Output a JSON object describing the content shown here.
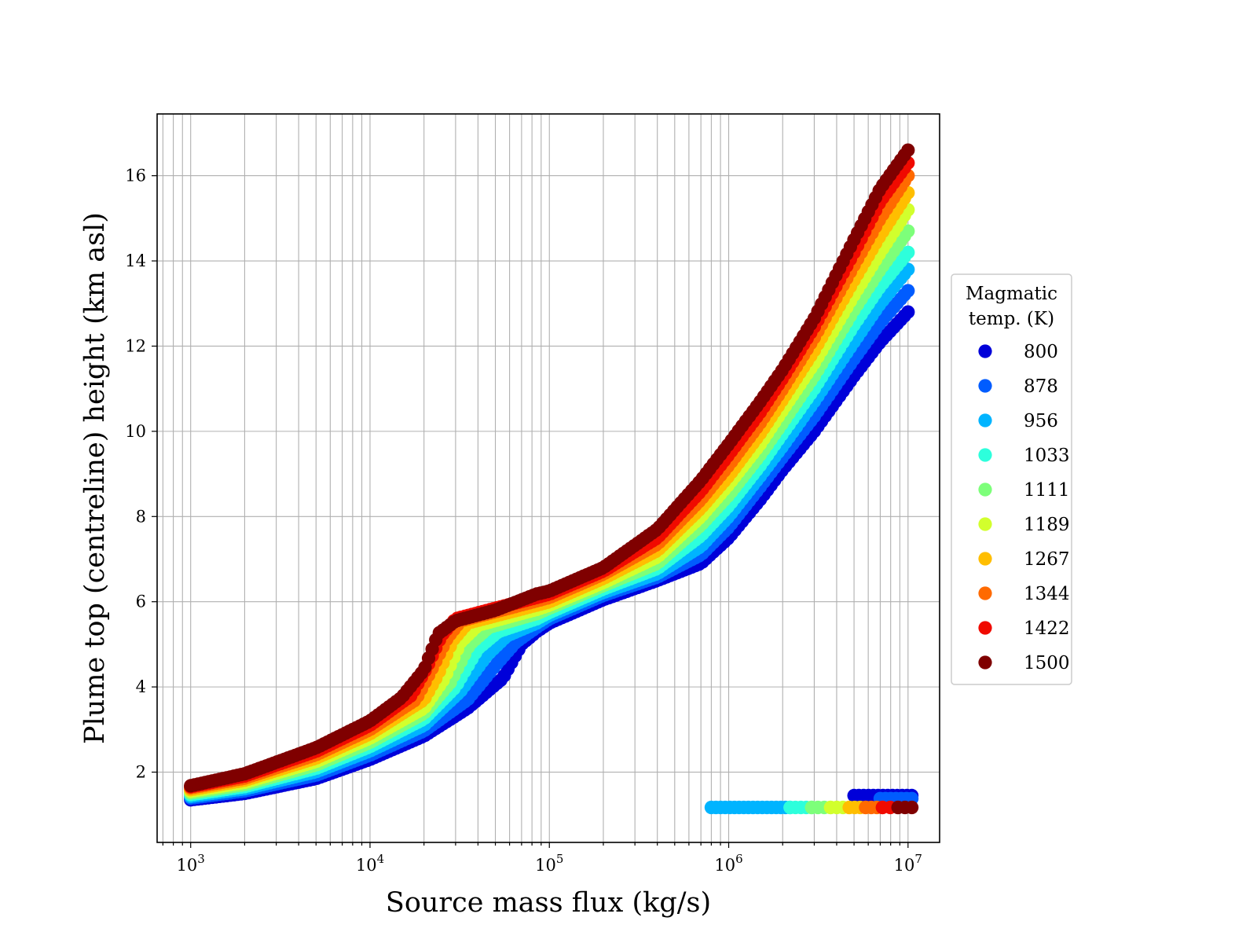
{
  "chart_data": {
    "type": "scatter",
    "title": "",
    "xlabel": "Source mass flux (kg/s)",
    "ylabel": "Plume top (centreline) height (km asl)",
    "xscale": "log",
    "xlim": [
      650,
      15000000
    ],
    "ylim": [
      0.35,
      17.45
    ],
    "x_ticks": [
      {
        "value": 1000,
        "base": "10",
        "exp": "3"
      },
      {
        "value": 10000,
        "base": "10",
        "exp": "4"
      },
      {
        "value": 100000,
        "base": "10",
        "exp": "5"
      },
      {
        "value": 1000000,
        "base": "10",
        "exp": "6"
      },
      {
        "value": 10000000,
        "base": "10",
        "exp": "7"
      }
    ],
    "y_ticks": [
      2,
      4,
      6,
      8,
      10,
      12,
      14,
      16
    ],
    "grid": true,
    "legend": {
      "title_lines": [
        "Magmatic",
        "temp. (K)"
      ],
      "placement": "right"
    },
    "series": [
      {
        "name": "800",
        "color": "#0000d9",
        "main_curve": [
          [
            1000,
            1.35
          ],
          [
            2000,
            1.5
          ],
          [
            5000,
            1.85
          ],
          [
            10000,
            2.3
          ],
          [
            20000,
            2.85
          ],
          [
            35000,
            3.5
          ],
          [
            55000,
            4.2
          ],
          [
            70000,
            5.0
          ],
          [
            85000,
            5.3
          ],
          [
            100000,
            5.5
          ],
          [
            200000,
            6.05
          ],
          [
            400000,
            6.5
          ],
          [
            700000,
            6.9
          ],
          [
            1000000,
            7.5
          ],
          [
            1500000,
            8.4
          ],
          [
            2000000,
            9.1
          ],
          [
            3000000,
            10.0
          ],
          [
            5000000,
            11.3
          ],
          [
            7000000,
            12.1
          ],
          [
            10000000,
            12.8
          ]
        ],
        "branch": {
          "x_start": 5000000,
          "x_end": 10500000,
          "y": 1.45
        }
      },
      {
        "name": "878",
        "color": "#005cff",
        "main_curve": [
          [
            1000,
            1.39
          ],
          [
            2000,
            1.56
          ],
          [
            5000,
            1.93
          ],
          [
            10000,
            2.4
          ],
          [
            20000,
            2.97
          ],
          [
            35000,
            3.7
          ],
          [
            50000,
            4.5
          ],
          [
            65000,
            5.05
          ],
          [
            85000,
            5.4
          ],
          [
            100000,
            5.6
          ],
          [
            200000,
            6.15
          ],
          [
            400000,
            6.58
          ],
          [
            700000,
            7.1
          ],
          [
            1000000,
            7.75
          ],
          [
            1500000,
            8.7
          ],
          [
            2000000,
            9.4
          ],
          [
            3000000,
            10.35
          ],
          [
            5000000,
            11.7
          ],
          [
            7000000,
            12.55
          ],
          [
            10000000,
            13.3
          ]
        ],
        "branch": {
          "x_start": 7000000,
          "x_end": 10500000,
          "y": 1.38
        }
      },
      {
        "name": "956",
        "color": "#00b4ff",
        "main_curve": [
          [
            1000,
            1.43
          ],
          [
            2000,
            1.61
          ],
          [
            5000,
            2.01
          ],
          [
            10000,
            2.5
          ],
          [
            20000,
            3.1
          ],
          [
            32000,
            3.9
          ],
          [
            45000,
            4.75
          ],
          [
            58000,
            5.2
          ],
          [
            85000,
            5.5
          ],
          [
            100000,
            5.68
          ],
          [
            200000,
            6.22
          ],
          [
            400000,
            6.66
          ],
          [
            700000,
            7.3
          ],
          [
            1000000,
            8.0
          ],
          [
            1500000,
            8.95
          ],
          [
            2000000,
            9.65
          ],
          [
            3000000,
            10.7
          ],
          [
            5000000,
            12.1
          ],
          [
            7000000,
            13.0
          ],
          [
            10000000,
            13.8
          ]
        ],
        "branch": {
          "x_start": 800000,
          "x_end": 2200000,
          "y": 1.17
        }
      },
      {
        "name": "1033",
        "color": "#2dffdc",
        "main_curve": [
          [
            1000,
            1.47
          ],
          [
            2000,
            1.66
          ],
          [
            5000,
            2.09
          ],
          [
            10000,
            2.6
          ],
          [
            20000,
            3.25
          ],
          [
            30000,
            4.0
          ],
          [
            40000,
            4.9
          ],
          [
            52000,
            5.3
          ],
          [
            85000,
            5.6
          ],
          [
            100000,
            5.75
          ],
          [
            200000,
            6.3
          ],
          [
            400000,
            6.78
          ],
          [
            700000,
            7.55
          ],
          [
            1000000,
            8.25
          ],
          [
            1500000,
            9.2
          ],
          [
            2000000,
            9.95
          ],
          [
            3000000,
            11.0
          ],
          [
            5000000,
            12.5
          ],
          [
            7000000,
            13.4
          ],
          [
            10000000,
            14.2
          ]
        ],
        "branch": {
          "x_start": 2200000,
          "x_end": 2900000,
          "y": 1.17
        }
      },
      {
        "name": "1111",
        "color": "#7dff7a",
        "main_curve": [
          [
            1000,
            1.51
          ],
          [
            2000,
            1.71
          ],
          [
            5000,
            2.17
          ],
          [
            10000,
            2.7
          ],
          [
            20000,
            3.38
          ],
          [
            28000,
            4.1
          ],
          [
            36000,
            5.0
          ],
          [
            46000,
            5.4
          ],
          [
            85000,
            5.72
          ],
          [
            100000,
            5.85
          ],
          [
            200000,
            6.38
          ],
          [
            400000,
            6.9
          ],
          [
            700000,
            7.8
          ],
          [
            1000000,
            8.5
          ],
          [
            1500000,
            9.45
          ],
          [
            2000000,
            10.2
          ],
          [
            3000000,
            11.3
          ],
          [
            5000000,
            12.85
          ],
          [
            7000000,
            13.8
          ],
          [
            10000000,
            14.7
          ]
        ],
        "branch": {
          "x_start": 2900000,
          "x_end": 3700000,
          "y": 1.17
        }
      },
      {
        "name": "1189",
        "color": "#d2ff2d",
        "main_curve": [
          [
            1000,
            1.55
          ],
          [
            2000,
            1.76
          ],
          [
            5000,
            2.25
          ],
          [
            10000,
            2.8
          ],
          [
            20000,
            3.5
          ],
          [
            26000,
            4.2
          ],
          [
            32000,
            5.05
          ],
          [
            40000,
            5.45
          ],
          [
            85000,
            5.82
          ],
          [
            100000,
            5.92
          ],
          [
            200000,
            6.45
          ],
          [
            400000,
            7.05
          ],
          [
            700000,
            8.0
          ],
          [
            1000000,
            8.75
          ],
          [
            1500000,
            9.7
          ],
          [
            2000000,
            10.5
          ],
          [
            3000000,
            11.6
          ],
          [
            5000000,
            13.2
          ],
          [
            7000000,
            14.2
          ],
          [
            10000000,
            15.2
          ]
        ],
        "branch": {
          "x_start": 3700000,
          "x_end": 4700000,
          "y": 1.17
        }
      },
      {
        "name": "1267",
        "color": "#ffbe00",
        "main_curve": [
          [
            1000,
            1.59
          ],
          [
            2000,
            1.81
          ],
          [
            5000,
            2.33
          ],
          [
            10000,
            2.9
          ],
          [
            20000,
            3.7
          ],
          [
            24000,
            4.3
          ],
          [
            29000,
            5.1
          ],
          [
            35000,
            5.5
          ],
          [
            85000,
            5.92
          ],
          [
            100000,
            6.0
          ],
          [
            200000,
            6.55
          ],
          [
            400000,
            7.2
          ],
          [
            700000,
            8.2
          ],
          [
            1000000,
            8.95
          ],
          [
            1500000,
            9.95
          ],
          [
            2000000,
            10.75
          ],
          [
            3000000,
            11.9
          ],
          [
            5000000,
            13.55
          ],
          [
            7000000,
            14.6
          ],
          [
            10000000,
            15.6
          ]
        ],
        "branch": {
          "x_start": 4700000,
          "x_end": 5800000,
          "y": 1.17
        }
      },
      {
        "name": "1344",
        "color": "#ff6a00",
        "main_curve": [
          [
            1000,
            1.63
          ],
          [
            2000,
            1.86
          ],
          [
            5000,
            2.41
          ],
          [
            10000,
            3.0
          ],
          [
            18000,
            3.7
          ],
          [
            22000,
            4.4
          ],
          [
            27000,
            5.15
          ],
          [
            32000,
            5.55
          ],
          [
            85000,
            6.02
          ],
          [
            100000,
            6.1
          ],
          [
            200000,
            6.65
          ],
          [
            400000,
            7.35
          ],
          [
            700000,
            8.4
          ],
          [
            1000000,
            9.2
          ],
          [
            1500000,
            10.2
          ],
          [
            2000000,
            11.0
          ],
          [
            3000000,
            12.2
          ],
          [
            5000000,
            13.9
          ],
          [
            7000000,
            15.0
          ],
          [
            10000000,
            16.0
          ]
        ],
        "branch": {
          "x_start": 5800000,
          "x_end": 7200000,
          "y": 1.17
        }
      },
      {
        "name": "1422",
        "color": "#f00a00",
        "main_curve": [
          [
            1000,
            1.66
          ],
          [
            2000,
            1.91
          ],
          [
            5000,
            2.49
          ],
          [
            10000,
            3.1
          ],
          [
            17000,
            3.8
          ],
          [
            21000,
            4.5
          ],
          [
            25000,
            5.2
          ],
          [
            30000,
            5.6
          ],
          [
            85000,
            6.1
          ],
          [
            100000,
            6.18
          ],
          [
            200000,
            6.72
          ],
          [
            400000,
            7.5
          ],
          [
            700000,
            8.6
          ],
          [
            1000000,
            9.45
          ],
          [
            1500000,
            10.45
          ],
          [
            2000000,
            11.25
          ],
          [
            3000000,
            12.45
          ],
          [
            5000000,
            14.2
          ],
          [
            7000000,
            15.4
          ],
          [
            10000000,
            16.3
          ]
        ],
        "branch": {
          "x_start": 7200000,
          "x_end": 8800000,
          "y": 1.17
        }
      },
      {
        "name": "1500",
        "color": "#7f0000",
        "main_curve": [
          [
            1000,
            1.68
          ],
          [
            2000,
            1.96
          ],
          [
            5000,
            2.57
          ],
          [
            10000,
            3.2
          ],
          [
            15000,
            3.75
          ],
          [
            20000,
            4.4
          ],
          [
            24000,
            5.25
          ],
          [
            30000,
            5.55
          ],
          [
            50000,
            5.8
          ],
          [
            85000,
            6.18
          ],
          [
            100000,
            6.25
          ],
          [
            200000,
            6.8
          ],
          [
            400000,
            7.7
          ],
          [
            700000,
            8.85
          ],
          [
            1000000,
            9.7
          ],
          [
            1500000,
            10.7
          ],
          [
            2000000,
            11.45
          ],
          [
            3000000,
            12.65
          ],
          [
            5000000,
            14.5
          ],
          [
            7000000,
            15.7
          ],
          [
            10000000,
            16.6
          ]
        ],
        "branch": {
          "x_start": 8800000,
          "x_end": 10500000,
          "y": 1.17
        }
      }
    ]
  }
}
